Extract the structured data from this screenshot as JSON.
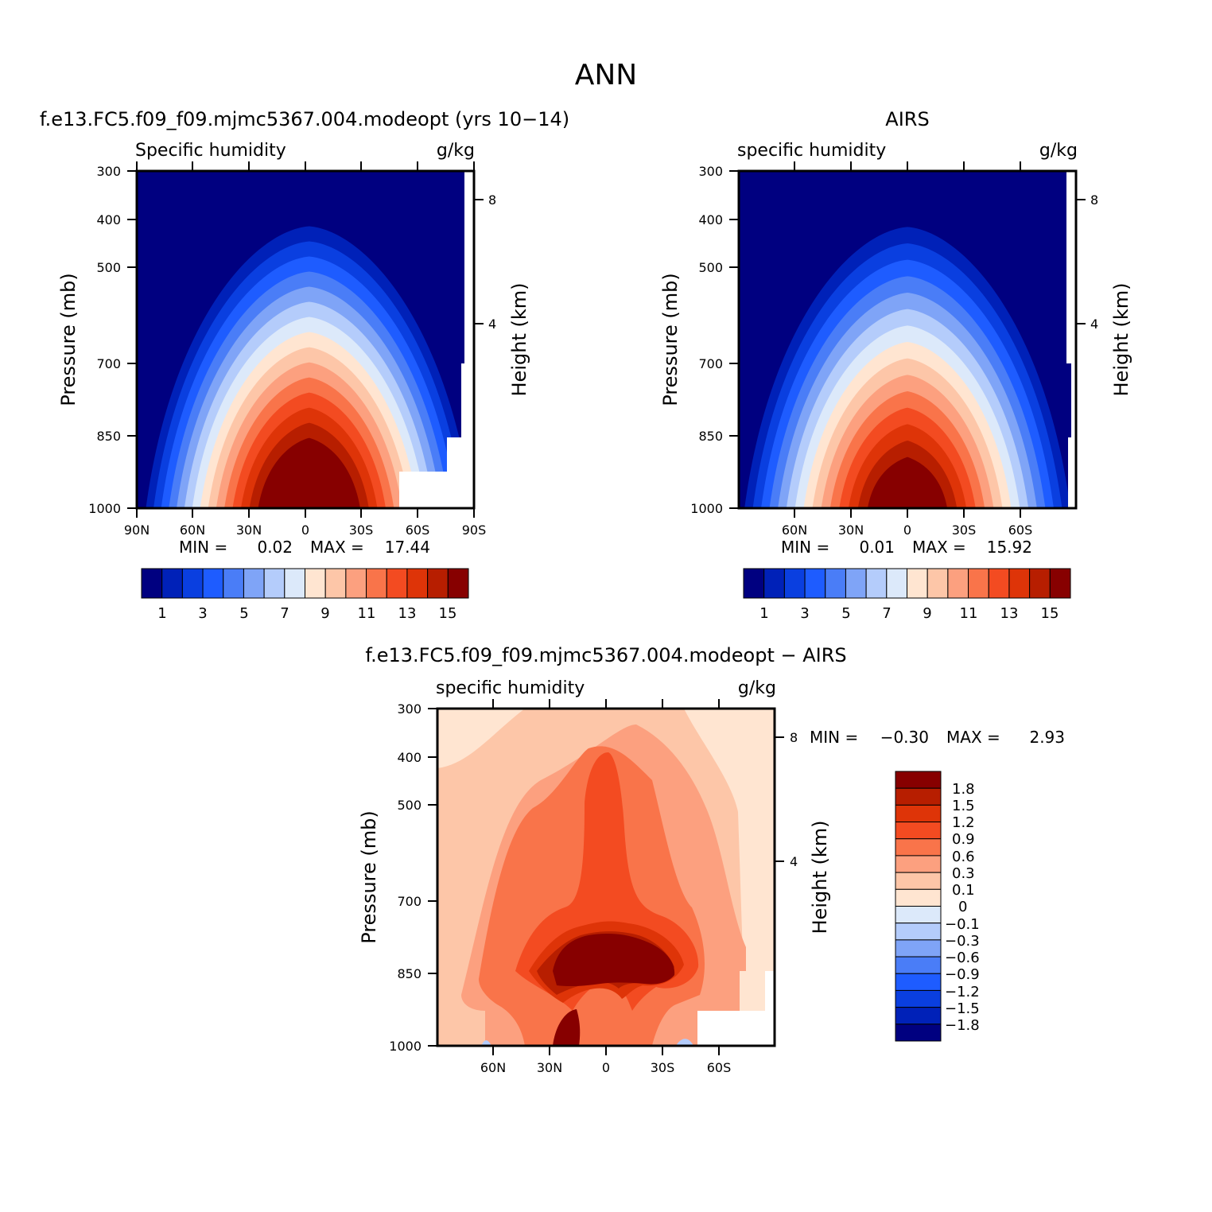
{
  "figure_title": "ANN",
  "chart_data": [
    {
      "type": "contour",
      "panel_title": "f.e13.FC5.f09_f09.mjmc5367.004.modeopt (yrs 10−14)",
      "left_label": "Specific humidity",
      "units": "g/kg",
      "ylabel": "Pressure (mb)",
      "y2label": "Height (km)",
      "y_ticks": [
        "300",
        "400",
        "500",
        "700",
        "850",
        "1000"
      ],
      "y2_ticks": [
        "8",
        "4"
      ],
      "x_ticks": [
        "90N",
        "60N",
        "30N",
        "0",
        "30S",
        "60S",
        "90S"
      ],
      "min_label": "MIN =",
      "min_value": "0.02",
      "max_label": "MAX =",
      "max_value": "17.44",
      "levels": [
        1,
        2,
        3,
        4,
        5,
        6,
        7,
        8,
        9,
        10,
        11,
        12,
        13,
        14,
        15
      ],
      "colorbar_labels": [
        "1",
        "3",
        "5",
        "7",
        "9",
        "11",
        "13",
        "15"
      ],
      "peak_latitude": -2,
      "peak_value": 17.44
    },
    {
      "type": "contour",
      "panel_title": "AIRS",
      "left_label": "specific humidity",
      "units": "g/kg",
      "ylabel": "Pressure (mb)",
      "y2label": "Height (km)",
      "y_ticks": [
        "300",
        "400",
        "500",
        "700",
        "850",
        "1000"
      ],
      "y2_ticks": [
        "8",
        "4"
      ],
      "x_ticks": [
        "60N",
        "30N",
        "0",
        "30S",
        "60S"
      ],
      "min_label": "MIN =",
      "min_value": "0.01",
      "max_label": "MAX =",
      "max_value": "15.92",
      "levels": [
        1,
        2,
        3,
        4,
        5,
        6,
        7,
        8,
        9,
        10,
        11,
        12,
        13,
        14,
        15
      ],
      "colorbar_labels": [
        "1",
        "3",
        "5",
        "7",
        "9",
        "11",
        "13",
        "15"
      ],
      "peak_latitude": 0,
      "peak_value": 15.92
    },
    {
      "type": "contour",
      "panel_title": "f.e13.FC5.f09_f09.mjmc5367.004.modeopt − AIRS",
      "left_label": "specific humidity",
      "units": "g/kg",
      "ylabel": "Pressure (mb)",
      "y2label": "Height (km)",
      "y_ticks": [
        "300",
        "400",
        "500",
        "700",
        "850",
        "1000"
      ],
      "y2_ticks": [
        "8",
        "4"
      ],
      "x_ticks": [
        "60N",
        "30N",
        "0",
        "30S",
        "60S"
      ],
      "min_label": "MIN =",
      "min_value": "−0.30",
      "max_label": "MAX =",
      "max_value": "2.93",
      "levels": [
        -1.8,
        -1.5,
        -1.2,
        -0.9,
        -0.6,
        -0.3,
        -0.1,
        0,
        0.1,
        0.3,
        0.6,
        0.9,
        1.2,
        1.5,
        1.8
      ],
      "colorbar_labels": [
        "1.8",
        "1.5",
        "1.2",
        "0.9",
        "0.6",
        "0.3",
        "0.1",
        "0",
        "−0.1",
        "−0.3",
        "−0.6",
        "−0.9",
        "−1.2",
        "−1.5",
        "−1.8"
      ]
    }
  ],
  "palette": [
    "#000080",
    "#0021b8",
    "#0a3fe0",
    "#1e5cff",
    "#4a7df7",
    "#7fa4f7",
    "#b4ccfb",
    "#dce9fa",
    "#ffe5d1",
    "#fdc6a8",
    "#fca07f",
    "#f9744a",
    "#f34b21",
    "#de3408",
    "#b71e00",
    "#870000"
  ]
}
